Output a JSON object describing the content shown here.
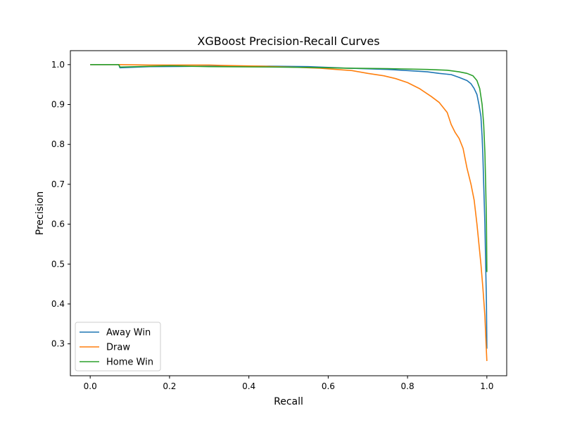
{
  "chart_data": {
    "type": "line",
    "title": "XGBoost Precision-Recall Curves",
    "xlabel": "Recall",
    "ylabel": "Precision",
    "xlim": [
      -0.05,
      1.05
    ],
    "ylim": [
      0.22,
      1.035
    ],
    "xticks": [
      0.0,
      0.2,
      0.4,
      0.6,
      0.8,
      1.0
    ],
    "xtick_labels": [
      "0.0",
      "0.2",
      "0.4",
      "0.6",
      "0.8",
      "1.0"
    ],
    "yticks": [
      0.3,
      0.4,
      0.5,
      0.6,
      0.7,
      0.8,
      0.9,
      1.0
    ],
    "ytick_labels": [
      "0.3",
      "0.4",
      "0.5",
      "0.6",
      "0.7",
      "0.8",
      "0.9",
      "1.0"
    ],
    "grid": false,
    "legend_position": "lower-left",
    "series": [
      {
        "name": "Away Win",
        "color": "#1f77b4",
        "points": [
          [
            0.0,
            1.0
          ],
          [
            0.072,
            1.0
          ],
          [
            0.075,
            0.992
          ],
          [
            0.15,
            0.995
          ],
          [
            0.3,
            0.996
          ],
          [
            0.45,
            0.996
          ],
          [
            0.55,
            0.995
          ],
          [
            0.65,
            0.991
          ],
          [
            0.75,
            0.988
          ],
          [
            0.8,
            0.985
          ],
          [
            0.85,
            0.982
          ],
          [
            0.88,
            0.978
          ],
          [
            0.91,
            0.975
          ],
          [
            0.93,
            0.968
          ],
          [
            0.95,
            0.96
          ],
          [
            0.96,
            0.952
          ],
          [
            0.968,
            0.94
          ],
          [
            0.975,
            0.925
          ],
          [
            0.98,
            0.9
          ],
          [
            0.985,
            0.87
          ],
          [
            0.988,
            0.82
          ],
          [
            0.99,
            0.77
          ],
          [
            0.992,
            0.7
          ],
          [
            0.995,
            0.6
          ],
          [
            0.997,
            0.5
          ],
          [
            0.999,
            0.4
          ],
          [
            1.0,
            0.288
          ]
        ]
      },
      {
        "name": "Draw",
        "color": "#ff7f0e",
        "points": [
          [
            0.0,
            1.0
          ],
          [
            0.072,
            1.0
          ],
          [
            0.15,
            0.999
          ],
          [
            0.3,
            0.999
          ],
          [
            0.33,
            0.998
          ],
          [
            0.43,
            0.996
          ],
          [
            0.5,
            0.994
          ],
          [
            0.58,
            0.991
          ],
          [
            0.62,
            0.988
          ],
          [
            0.66,
            0.985
          ],
          [
            0.7,
            0.978
          ],
          [
            0.74,
            0.972
          ],
          [
            0.77,
            0.965
          ],
          [
            0.8,
            0.955
          ],
          [
            0.83,
            0.94
          ],
          [
            0.86,
            0.92
          ],
          [
            0.88,
            0.905
          ],
          [
            0.9,
            0.88
          ],
          [
            0.91,
            0.85
          ],
          [
            0.92,
            0.83
          ],
          [
            0.93,
            0.815
          ],
          [
            0.94,
            0.79
          ],
          [
            0.95,
            0.74
          ],
          [
            0.96,
            0.7
          ],
          [
            0.968,
            0.66
          ],
          [
            0.975,
            0.6
          ],
          [
            0.98,
            0.55
          ],
          [
            0.985,
            0.5
          ],
          [
            0.99,
            0.44
          ],
          [
            0.995,
            0.37
          ],
          [
            0.998,
            0.3
          ],
          [
            1.0,
            0.257
          ]
        ]
      },
      {
        "name": "Home Win",
        "color": "#2ca02c",
        "points": [
          [
            0.0,
            1.0
          ],
          [
            0.072,
            1.0
          ],
          [
            0.075,
            0.994
          ],
          [
            0.2,
            0.997
          ],
          [
            0.3,
            0.995
          ],
          [
            0.45,
            0.994
          ],
          [
            0.55,
            0.993
          ],
          [
            0.65,
            0.991
          ],
          [
            0.75,
            0.99
          ],
          [
            0.85,
            0.988
          ],
          [
            0.9,
            0.986
          ],
          [
            0.93,
            0.982
          ],
          [
            0.95,
            0.978
          ],
          [
            0.965,
            0.972
          ],
          [
            0.975,
            0.96
          ],
          [
            0.982,
            0.94
          ],
          [
            0.988,
            0.9
          ],
          [
            0.992,
            0.85
          ],
          [
            0.995,
            0.78
          ],
          [
            0.997,
            0.7
          ],
          [
            0.999,
            0.6
          ],
          [
            1.0,
            0.48
          ]
        ]
      }
    ]
  }
}
